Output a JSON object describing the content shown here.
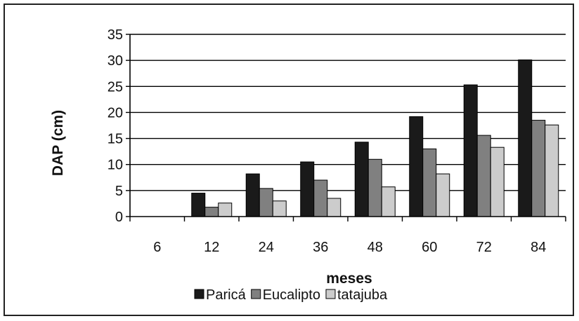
{
  "chart_data": {
    "type": "bar",
    "title": "",
    "xlabel": "meses",
    "ylabel": "DAP (cm)",
    "ylim": [
      0,
      35
    ],
    "yticks": [
      0,
      5,
      10,
      15,
      20,
      25,
      30,
      35
    ],
    "grid": true,
    "legend_position": "bottom",
    "categories": [
      "6",
      "12",
      "24",
      "36",
      "48",
      "60",
      "72",
      "84"
    ],
    "series": [
      {
        "name": "Paricá",
        "color": "#1a1a1a",
        "values": [
          0,
          4.5,
          8.2,
          10.5,
          14.3,
          19.2,
          25.3,
          30.1
        ]
      },
      {
        "name": "Eucalipto",
        "color": "#808080",
        "values": [
          0,
          1.8,
          5.4,
          7.0,
          11.0,
          13.0,
          15.6,
          18.5
        ]
      },
      {
        "name": "tatajuba",
        "color": "#cccccc",
        "values": [
          0,
          2.6,
          3.0,
          3.5,
          5.7,
          8.2,
          13.3,
          17.6
        ]
      }
    ]
  }
}
